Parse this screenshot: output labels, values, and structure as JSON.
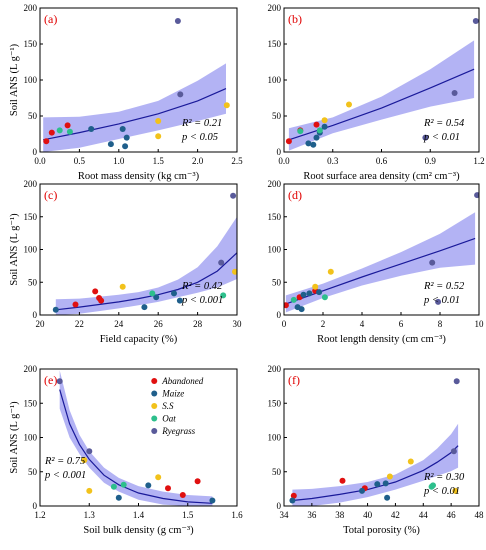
{
  "colors": {
    "Abandoned": "#e01010",
    "Maize": "#1f5f8b",
    "S.S": "#f2c21b",
    "Oat": "#2dbf8c",
    "Ryegrass": "#595a9a",
    "band": "#9999f0",
    "line": "#1a1a9a"
  },
  "legend": {
    "panel": 4,
    "entries": [
      "Abandoned",
      "Maize",
      "S.S",
      "Oat",
      "Ryegrass"
    ]
  },
  "chart_data": [
    {
      "type": "scatter",
      "panel_label": "(a)",
      "xlabel": "Root mass density (kg cm⁻³)",
      "ylabel": "Soil ANS (L g⁻¹)",
      "xlim": [
        0,
        2.5
      ],
      "ylim": [
        0,
        200
      ],
      "xticks": [
        "0.0",
        "0.5",
        "1.0",
        "1.5",
        "2.0",
        "2.5"
      ],
      "yticks": [
        "0",
        "50",
        "100",
        "150",
        "200"
      ],
      "stat_r2": "R² = 0.21",
      "stat_p": "p < 0.05",
      "fit": {
        "x": [
          0.04,
          0.5,
          1.0,
          1.5,
          2.0,
          2.36
        ],
        "y": [
          17,
          27,
          39,
          53,
          71,
          88
        ]
      },
      "band": {
        "x": [
          0.04,
          0.5,
          1.0,
          1.5,
          2.0,
          2.36
        ],
        "upper": [
          48,
          49,
          56,
          71,
          99,
          123
        ],
        "lower": [
          0,
          6,
          18,
          30,
          43,
          53
        ]
      },
      "points": [
        {
          "g": "Abandoned",
          "x": 0.08,
          "y": 15
        },
        {
          "g": "Abandoned",
          "x": 0.15,
          "y": 27
        },
        {
          "g": "Abandoned",
          "x": 0.35,
          "y": 37
        },
        {
          "g": "Maize",
          "x": 0.65,
          "y": 32
        },
        {
          "g": "Maize",
          "x": 0.9,
          "y": 11
        },
        {
          "g": "Maize",
          "x": 1.05,
          "y": 32
        },
        {
          "g": "Maize",
          "x": 1.1,
          "y": 20
        },
        {
          "g": "Maize",
          "x": 1.08,
          "y": 8
        },
        {
          "g": "S.S",
          "x": 1.5,
          "y": 43
        },
        {
          "g": "S.S",
          "x": 1.5,
          "y": 22
        },
        {
          "g": "S.S",
          "x": 2.37,
          "y": 65
        },
        {
          "g": "Oat",
          "x": 0.25,
          "y": 30
        },
        {
          "g": "Oat",
          "x": 0.38,
          "y": 28
        },
        {
          "g": "Ryegrass",
          "x": 1.75,
          "y": 182
        },
        {
          "g": "Ryegrass",
          "x": 1.78,
          "y": 80
        }
      ]
    },
    {
      "type": "scatter",
      "panel_label": "(b)",
      "xlabel": "Root surface area density (cm² cm⁻³)",
      "ylabel": "",
      "xlim": [
        0,
        1.2
      ],
      "ylim": [
        0,
        200
      ],
      "xticks": [
        "0.0",
        "0.3",
        "0.6",
        "0.9",
        "1.2"
      ],
      "yticks": [
        "0",
        "50",
        "100",
        "150",
        "200"
      ],
      "stat_r2": "R² = 0.54",
      "stat_p": "p < 0.01",
      "fit": {
        "x": [
          0.03,
          0.3,
          0.6,
          0.9,
          1.17
        ],
        "y": [
          17,
          37,
          61,
          89,
          115
        ]
      },
      "band": {
        "x": [
          0.03,
          0.3,
          0.6,
          0.9,
          1.17
        ],
        "upper": [
          33,
          48,
          77,
          115,
          155
        ],
        "lower": [
          2,
          26,
          45,
          63,
          75
        ]
      },
      "points": [
        {
          "g": "Abandoned",
          "x": 0.03,
          "y": 15
        },
        {
          "g": "Abandoned",
          "x": 0.1,
          "y": 30
        },
        {
          "g": "Abandoned",
          "x": 0.2,
          "y": 38
        },
        {
          "g": "Maize",
          "x": 0.15,
          "y": 12
        },
        {
          "g": "Maize",
          "x": 0.18,
          "y": 10
        },
        {
          "g": "Maize",
          "x": 0.2,
          "y": 20
        },
        {
          "g": "Maize",
          "x": 0.22,
          "y": 27
        },
        {
          "g": "Maize",
          "x": 0.25,
          "y": 35
        },
        {
          "g": "S.S",
          "x": 0.25,
          "y": 44
        },
        {
          "g": "S.S",
          "x": 0.4,
          "y": 66
        },
        {
          "g": "Oat",
          "x": 0.1,
          "y": 29
        },
        {
          "g": "Oat",
          "x": 0.22,
          "y": 30
        },
        {
          "g": "Ryegrass",
          "x": 0.87,
          "y": 20
        },
        {
          "g": "Ryegrass",
          "x": 1.05,
          "y": 82
        },
        {
          "g": "Ryegrass",
          "x": 1.18,
          "y": 182
        }
      ]
    },
    {
      "type": "scatter",
      "panel_label": "(c)",
      "xlabel": "Field capacity (%)",
      "ylabel": "Soil ANS (L g⁻¹)",
      "xlim": [
        20,
        30
      ],
      "ylim": [
        0,
        200
      ],
      "xticks": [
        "20",
        "22",
        "24",
        "26",
        "28",
        "30"
      ],
      "yticks": [
        "0",
        "50",
        "100",
        "150",
        "200"
      ],
      "stat_r2": "R² = 0.42",
      "stat_p": "p < 0.001",
      "fit": {
        "x": [
          20.8,
          22,
          23,
          24,
          25,
          26,
          27,
          28,
          29,
          30
        ],
        "y": [
          8,
          12,
          16,
          20,
          25,
          31,
          39,
          50,
          67,
          95
        ]
      },
      "band": {
        "x": [
          20.8,
          22,
          23,
          24,
          25,
          26,
          27,
          28,
          29,
          30
        ],
        "upper": [
          24,
          25,
          28,
          31,
          35,
          42,
          54,
          73,
          105,
          150
        ],
        "lower": [
          0,
          2,
          6,
          10,
          15,
          20,
          27,
          34,
          42,
          55
        ]
      },
      "points": [
        {
          "g": "Abandoned",
          "x": 21.8,
          "y": 16
        },
        {
          "g": "Abandoned",
          "x": 22.8,
          "y": 36
        },
        {
          "g": "Abandoned",
          "x": 23.0,
          "y": 26
        },
        {
          "g": "Abandoned",
          "x": 23.1,
          "y": 22
        },
        {
          "g": "Maize",
          "x": 20.8,
          "y": 8
        },
        {
          "g": "Maize",
          "x": 25.3,
          "y": 12
        },
        {
          "g": "Maize",
          "x": 25.9,
          "y": 27
        },
        {
          "g": "Maize",
          "x": 26.8,
          "y": 33
        },
        {
          "g": "Maize",
          "x": 27.1,
          "y": 22
        },
        {
          "g": "S.S",
          "x": 24.2,
          "y": 43
        },
        {
          "g": "S.S",
          "x": 29.9,
          "y": 66
        },
        {
          "g": "Oat",
          "x": 25.7,
          "y": 33
        },
        {
          "g": "Oat",
          "x": 29.3,
          "y": 30
        },
        {
          "g": "Ryegrass",
          "x": 29.2,
          "y": 80
        },
        {
          "g": "Ryegrass",
          "x": 29.8,
          "y": 182
        }
      ]
    },
    {
      "type": "scatter",
      "panel_label": "(d)",
      "xlabel": "Root length density (cm cm⁻³)",
      "ylabel": "",
      "xlim": [
        0,
        10
      ],
      "ylim": [
        0,
        200
      ],
      "xticks": [
        "0",
        "2",
        "4",
        "6",
        "8",
        "10"
      ],
      "yticks": [
        "0",
        "50",
        "100",
        "150",
        "200"
      ],
      "stat_r2": "R² = 0.52",
      "stat_p": "p < 0.01",
      "fit": {
        "x": [
          0.1,
          2,
          4,
          6,
          8,
          9.8
        ],
        "y": [
          17,
          37,
          58,
          78,
          98,
          117
        ]
      },
      "band": {
        "x": [
          0.1,
          2,
          4,
          6,
          8,
          9.8
        ],
        "upper": [
          30,
          48,
          71,
          96,
          124,
          157
        ],
        "lower": [
          4,
          26,
          45,
          60,
          72,
          77
        ]
      },
      "points": [
        {
          "g": "Abandoned",
          "x": 0.1,
          "y": 15
        },
        {
          "g": "Abandoned",
          "x": 0.8,
          "y": 27
        },
        {
          "g": "Abandoned",
          "x": 1.6,
          "y": 37
        },
        {
          "g": "Maize",
          "x": 0.7,
          "y": 12
        },
        {
          "g": "Maize",
          "x": 0.9,
          "y": 9
        },
        {
          "g": "Maize",
          "x": 1.0,
          "y": 31
        },
        {
          "g": "Maize",
          "x": 1.3,
          "y": 33
        },
        {
          "g": "Maize",
          "x": 1.8,
          "y": 35
        },
        {
          "g": "S.S",
          "x": 1.6,
          "y": 43
        },
        {
          "g": "S.S",
          "x": 2.4,
          "y": 66
        },
        {
          "g": "Oat",
          "x": 0.5,
          "y": 23
        },
        {
          "g": "Oat",
          "x": 2.1,
          "y": 27
        },
        {
          "g": "Ryegrass",
          "x": 7.6,
          "y": 80
        },
        {
          "g": "Ryegrass",
          "x": 7.9,
          "y": 20
        },
        {
          "g": "Ryegrass",
          "x": 9.9,
          "y": 183
        }
      ]
    },
    {
      "type": "scatter",
      "panel_label": "(e)",
      "xlabel": "Soil bulk density (g cm⁻³)",
      "ylabel": "Soil ANS (L g⁻¹)",
      "xlim": [
        1.2,
        1.6
      ],
      "ylim": [
        0,
        200
      ],
      "xticks": [
        "1.2",
        "1.3",
        "1.4",
        "1.5",
        "1.6"
      ],
      "yticks": [
        "0",
        "50",
        "100",
        "150",
        "200"
      ],
      "stat_r2": "R² = 0.75",
      "stat_p": "p < 0.001",
      "fit": {
        "x": [
          1.24,
          1.26,
          1.28,
          1.3,
          1.33,
          1.36,
          1.4,
          1.45,
          1.5,
          1.55
        ],
        "y": [
          170,
          120,
          90,
          68,
          45,
          31,
          19,
          11,
          6,
          4
        ]
      },
      "band": {
        "x": [
          1.24,
          1.26,
          1.28,
          1.3,
          1.33,
          1.36,
          1.4,
          1.45,
          1.5,
          1.55
        ],
        "upper": [
          198,
          140,
          104,
          80,
          56,
          41,
          29,
          21,
          16,
          14
        ],
        "lower": [
          142,
          100,
          76,
          56,
          34,
          21,
          9,
          2,
          0,
          0
        ]
      },
      "points": [
        {
          "g": "Abandoned",
          "x": 1.46,
          "y": 26
        },
        {
          "g": "Abandoned",
          "x": 1.49,
          "y": 16
        },
        {
          "g": "Abandoned",
          "x": 1.52,
          "y": 36
        },
        {
          "g": "Maize",
          "x": 1.36,
          "y": 12
        },
        {
          "g": "Maize",
          "x": 1.42,
          "y": 30
        },
        {
          "g": "Maize",
          "x": 1.55,
          "y": 8
        },
        {
          "g": "S.S",
          "x": 1.29,
          "y": 67
        },
        {
          "g": "S.S",
          "x": 1.3,
          "y": 22
        },
        {
          "g": "S.S",
          "x": 1.44,
          "y": 42
        },
        {
          "g": "Oat",
          "x": 1.35,
          "y": 28
        },
        {
          "g": "Oat",
          "x": 1.37,
          "y": 31
        },
        {
          "g": "Ryegrass",
          "x": 1.24,
          "y": 182
        },
        {
          "g": "Ryegrass",
          "x": 1.3,
          "y": 80
        }
      ]
    },
    {
      "type": "scatter",
      "panel_label": "(f)",
      "xlabel": "Total porosity (%)",
      "ylabel": "",
      "xlim": [
        34,
        48
      ],
      "ylim": [
        0,
        200
      ],
      "xticks": [
        "34",
        "36",
        "38",
        "40",
        "42",
        "44",
        "46",
        "48"
      ],
      "yticks": [
        "0",
        "50",
        "100",
        "150",
        "200"
      ],
      "stat_r2": "R² = 0.30",
      "stat_p": "p < 0.01",
      "fit": {
        "x": [
          34.6,
          36,
          38,
          40,
          42,
          44,
          45,
          46,
          46.5
        ],
        "y": [
          8,
          11,
          17,
          24,
          35,
          52,
          64,
          78,
          88
        ]
      },
      "band": {
        "x": [
          34.6,
          36,
          38,
          40,
          42,
          44,
          45,
          46,
          46.5
        ],
        "upper": [
          24,
          25,
          29,
          35,
          46,
          67,
          84,
          105,
          120
        ],
        "lower": [
          0,
          0,
          5,
          13,
          24,
          37,
          44,
          51,
          56
        ]
      },
      "points": [
        {
          "g": "Abandoned",
          "x": 34.7,
          "y": 15
        },
        {
          "g": "Abandoned",
          "x": 38.2,
          "y": 37
        },
        {
          "g": "Abandoned",
          "x": 39.8,
          "y": 26
        },
        {
          "g": "Maize",
          "x": 34.6,
          "y": 8
        },
        {
          "g": "Maize",
          "x": 39.6,
          "y": 22
        },
        {
          "g": "Maize",
          "x": 40.7,
          "y": 32
        },
        {
          "g": "Maize",
          "x": 41.3,
          "y": 33
        },
        {
          "g": "Maize",
          "x": 41.4,
          "y": 12
        },
        {
          "g": "S.S",
          "x": 41.6,
          "y": 43
        },
        {
          "g": "S.S",
          "x": 43.1,
          "y": 65
        },
        {
          "g": "S.S",
          "x": 46.3,
          "y": 22
        },
        {
          "g": "Oat",
          "x": 44.6,
          "y": 28
        },
        {
          "g": "Oat",
          "x": 44.7,
          "y": 30
        },
        {
          "g": "Ryegrass",
          "x": 46.2,
          "y": 80
        },
        {
          "g": "Ryegrass",
          "x": 46.4,
          "y": 182
        }
      ]
    }
  ]
}
